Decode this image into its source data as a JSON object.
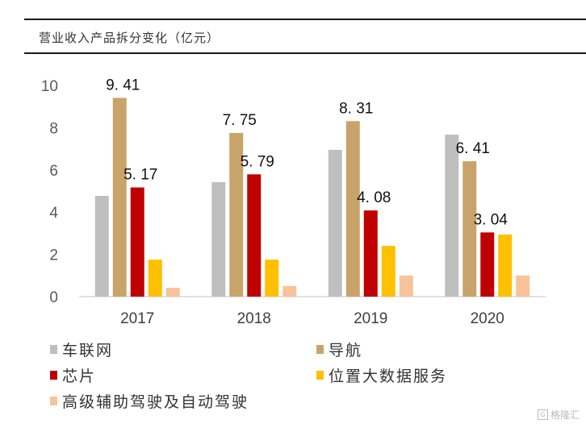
{
  "title": "营业收入产品拆分变化（亿元）",
  "watermark": {
    "icon": "gelonghui-logo-icon",
    "text": "格隆汇"
  },
  "chart_data": {
    "type": "bar",
    "title": "营业收入产品拆分变化（亿元）",
    "xlabel": "",
    "ylabel": "",
    "categories": [
      "2017",
      "2018",
      "2019",
      "2020"
    ],
    "ylim": [
      0,
      10
    ],
    "yticks": [
      0,
      2,
      4,
      6,
      8,
      10
    ],
    "grid": false,
    "legend_position": "bottom",
    "series": [
      {
        "name": "车联网",
        "color": "#BFBFBF",
        "values": [
          4.77,
          5.42,
          6.95,
          7.67
        ],
        "labels": [
          null,
          null,
          null,
          null
        ]
      },
      {
        "name": "导航",
        "color": "#C9A46A",
        "values": [
          9.41,
          7.75,
          8.31,
          6.41
        ],
        "labels": [
          "9.41",
          "7.75",
          "8.31",
          "6.41"
        ]
      },
      {
        "name": "芯片",
        "color": "#C00000",
        "values": [
          5.17,
          5.79,
          4.08,
          3.04
        ],
        "labels": [
          "5.17",
          "5.79",
          "4.08",
          "3.04"
        ]
      },
      {
        "name": "位置大数据服务",
        "color": "#FFC000",
        "values": [
          1.75,
          1.75,
          2.4,
          2.94
        ],
        "labels": [
          null,
          null,
          null,
          null
        ]
      },
      {
        "name": "高级辅助驾驶及自动驾驶",
        "color": "#F8C39A",
        "values": [
          0.42,
          0.5,
          1.0,
          1.0
        ],
        "labels": [
          null,
          null,
          null,
          null
        ]
      }
    ]
  }
}
